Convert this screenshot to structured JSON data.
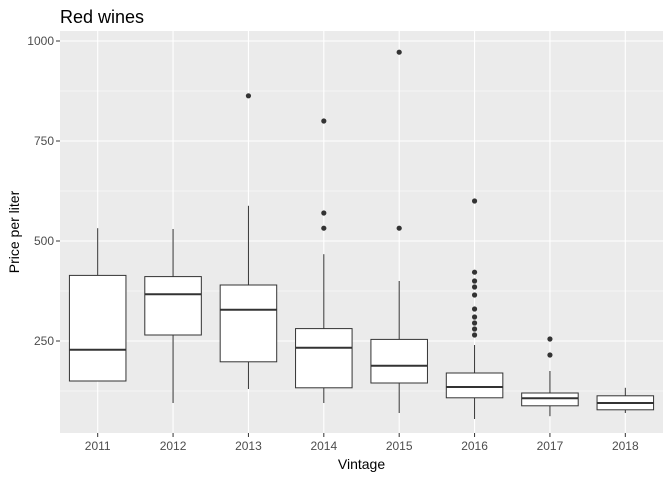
{
  "chart_data": {
    "type": "boxplot",
    "title": "Red wines",
    "xlabel": "Vintage",
    "ylabel": "Price per liter",
    "categories": [
      "2011",
      "2012",
      "2013",
      "2014",
      "2015",
      "2016",
      "2017",
      "2018"
    ],
    "ylim": [
      20,
      1025
    ],
    "yticks": [
      250,
      500,
      750,
      1000
    ],
    "grid": true,
    "boxes": [
      {
        "category": "2011",
        "min": 150,
        "q1": 150,
        "median": 228,
        "q3": 414,
        "max": 532,
        "outliers": []
      },
      {
        "category": "2012",
        "min": 95,
        "q1": 265,
        "median": 367,
        "q3": 411,
        "max": 530,
        "outliers": []
      },
      {
        "category": "2013",
        "min": 130,
        "q1": 198,
        "median": 328,
        "q3": 390,
        "max": 588,
        "outliers": [
          863
        ]
      },
      {
        "category": "2014",
        "min": 95,
        "q1": 133,
        "median": 233,
        "q3": 281,
        "max": 467,
        "outliers": [
          532,
          570,
          800
        ]
      },
      {
        "category": "2015",
        "min": 70,
        "q1": 145,
        "median": 188,
        "q3": 254,
        "max": 400,
        "outliers": [
          532,
          972
        ]
      },
      {
        "category": "2016",
        "min": 55,
        "q1": 108,
        "median": 135,
        "q3": 170,
        "max": 240,
        "outliers": [
          265,
          280,
          295,
          310,
          330,
          365,
          385,
          400,
          422,
          600
        ]
      },
      {
        "category": "2017",
        "min": 62,
        "q1": 88,
        "median": 107,
        "q3": 120,
        "max": 175,
        "outliers": [
          215,
          255
        ]
      },
      {
        "category": "2018",
        "min": 70,
        "q1": 78,
        "median": 95,
        "q3": 113,
        "max": 133,
        "outliers": []
      }
    ],
    "colors": {
      "panel": "#ebebeb",
      "grid_major": "#ffffff",
      "box_fill": "#ffffff",
      "box_stroke": "#333333",
      "outlier": "#333333"
    }
  }
}
